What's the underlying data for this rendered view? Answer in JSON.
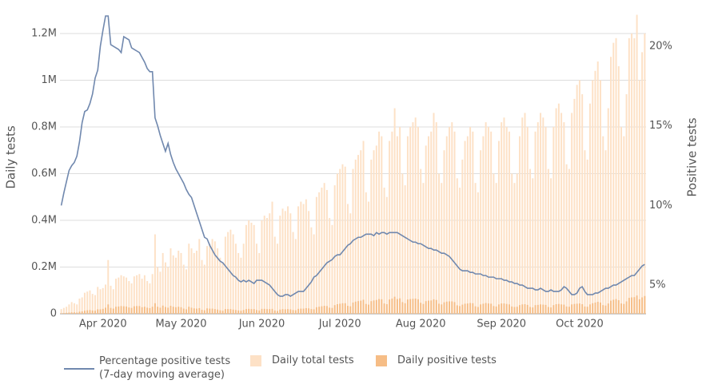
{
  "chart_data": {
    "type": "bar",
    "y_label": "Daily tests",
    "y2_label": "Positive tests",
    "categories": [
      null,
      null,
      null,
      null,
      null,
      null,
      null,
      null,
      null,
      null,
      null,
      null,
      null,
      null,
      null,
      null,
      "Apr 2020",
      null,
      null,
      null,
      null,
      null,
      null,
      null,
      null,
      null,
      null,
      null,
      null,
      null,
      null,
      null,
      null,
      null,
      null,
      null,
      null,
      null,
      null,
      null,
      null,
      null,
      null,
      null,
      null,
      null,
      "May 2020",
      null,
      null,
      null,
      null,
      null,
      null,
      null,
      null,
      null,
      null,
      null,
      null,
      null,
      null,
      null,
      null,
      null,
      null,
      null,
      null,
      null,
      null,
      null,
      null,
      null,
      null,
      null,
      null,
      null,
      null,
      "Jun 2020",
      null,
      null,
      null,
      null,
      null,
      null,
      null,
      null,
      null,
      null,
      null,
      null,
      null,
      null,
      null,
      null,
      null,
      null,
      null,
      null,
      null,
      null,
      null,
      null,
      null,
      null,
      null,
      null,
      null,
      "Jul 2020",
      null,
      null,
      null,
      null,
      null,
      null,
      null,
      null,
      null,
      null,
      null,
      null,
      null,
      null,
      null,
      null,
      null,
      null,
      null,
      null,
      null,
      null,
      null,
      null,
      null,
      null,
      null,
      null,
      null,
      null,
      "Aug 2020",
      null,
      null,
      null,
      null,
      null,
      null,
      null,
      null,
      null,
      null,
      null,
      null,
      null,
      null,
      null,
      null,
      null,
      null,
      null,
      null,
      null,
      null,
      null,
      null,
      null,
      null,
      null,
      null,
      null,
      null,
      "Sep 2020",
      null,
      null,
      null,
      null,
      null,
      null,
      null,
      null,
      null,
      null,
      null,
      null,
      null,
      null,
      null,
      null,
      null,
      null,
      null,
      null,
      null,
      null,
      null,
      null,
      null,
      null,
      null,
      null,
      null,
      "Oct 2020",
      null,
      null,
      null,
      null,
      null,
      null,
      null,
      null,
      null,
      null,
      null,
      null,
      null,
      null,
      null,
      null,
      null,
      null,
      null,
      null,
      null,
      null,
      null,
      null,
      null
    ],
    "series": [
      {
        "name": "Percentage positive tests (7-day moving average)",
        "type": "line",
        "axis": "y2",
        "color": "#7088ae",
        "values": [
          10.0,
          10.8,
          11.5,
          12.2,
          12.5,
          12.7,
          13.1,
          14.0,
          15.2,
          15.9,
          16.0,
          16.4,
          17.0,
          18.0,
          18.5,
          20.0,
          21.0,
          21.9,
          21.9,
          20.1,
          20.0,
          19.9,
          19.8,
          19.6,
          20.6,
          20.5,
          20.4,
          19.9,
          19.8,
          19.7,
          19.6,
          19.3,
          19.0,
          18.6,
          18.4,
          18.4,
          15.5,
          15.0,
          14.4,
          13.9,
          13.4,
          13.9,
          13.2,
          12.7,
          12.3,
          12.0,
          11.7,
          11.4,
          11.0,
          10.7,
          10.5,
          10.0,
          9.5,
          9.0,
          8.5,
          8.0,
          7.9,
          7.5,
          7.2,
          6.9,
          6.7,
          6.5,
          6.4,
          6.2,
          6.0,
          5.8,
          5.6,
          5.5,
          5.3,
          5.2,
          5.3,
          5.2,
          5.3,
          5.2,
          5.1,
          5.3,
          5.3,
          5.3,
          5.2,
          5.1,
          5.0,
          4.8,
          4.6,
          4.4,
          4.3,
          4.3,
          4.4,
          4.4,
          4.3,
          4.4,
          4.5,
          4.6,
          4.6,
          4.6,
          4.8,
          5.0,
          5.2,
          5.5,
          5.6,
          5.8,
          6.0,
          6.2,
          6.4,
          6.5,
          6.6,
          6.8,
          6.9,
          6.9,
          7.1,
          7.3,
          7.5,
          7.6,
          7.8,
          7.9,
          8.0,
          8.0,
          8.1,
          8.2,
          8.2,
          8.2,
          8.1,
          8.3,
          8.2,
          8.3,
          8.3,
          8.2,
          8.3,
          8.3,
          8.3,
          8.3,
          8.2,
          8.1,
          8.0,
          7.9,
          7.8,
          7.7,
          7.7,
          7.6,
          7.6,
          7.5,
          7.4,
          7.3,
          7.3,
          7.2,
          7.2,
          7.1,
          7.0,
          7.0,
          6.9,
          6.8,
          6.6,
          6.4,
          6.2,
          6.0,
          5.9,
          5.9,
          5.9,
          5.8,
          5.8,
          5.7,
          5.7,
          5.7,
          5.6,
          5.6,
          5.5,
          5.5,
          5.5,
          5.4,
          5.4,
          5.4,
          5.3,
          5.3,
          5.2,
          5.2,
          5.1,
          5.1,
          5.0,
          5.0,
          4.9,
          4.8,
          4.8,
          4.8,
          4.7,
          4.7,
          4.8,
          4.7,
          4.6,
          4.6,
          4.7,
          4.6,
          4.6,
          4.6,
          4.7,
          4.9,
          4.8,
          4.6,
          4.4,
          4.4,
          4.5,
          4.8,
          4.9,
          4.6,
          4.4,
          4.4,
          4.4,
          4.5,
          4.5,
          4.6,
          4.7,
          4.8,
          4.8,
          4.9,
          5.0,
          5.0,
          5.1,
          5.2,
          5.3,
          5.4,
          5.5,
          5.6,
          5.6,
          5.8,
          6.0,
          6.2,
          6.3
        ]
      },
      {
        "name": "Daily total tests",
        "type": "bar",
        "color": "#fde1c6",
        "values": [
          20000,
          25000,
          30000,
          40000,
          50000,
          45000,
          40000,
          65000,
          70000,
          90000,
          95000,
          100000,
          85000,
          80000,
          115000,
          105000,
          110000,
          125000,
          230000,
          120000,
          105000,
          150000,
          155000,
          165000,
          160000,
          155000,
          140000,
          130000,
          160000,
          165000,
          170000,
          150000,
          165000,
          140000,
          130000,
          170000,
          340000,
          200000,
          180000,
          260000,
          220000,
          200000,
          280000,
          250000,
          240000,
          270000,
          260000,
          210000,
          190000,
          300000,
          280000,
          260000,
          270000,
          320000,
          230000,
          210000,
          290000,
          300000,
          320000,
          310000,
          280000,
          240000,
          220000,
          330000,
          350000,
          360000,
          340000,
          300000,
          260000,
          240000,
          300000,
          380000,
          400000,
          390000,
          380000,
          300000,
          260000,
          400000,
          420000,
          410000,
          430000,
          480000,
          330000,
          300000,
          420000,
          450000,
          440000,
          460000,
          430000,
          350000,
          320000,
          460000,
          480000,
          470000,
          490000,
          440000,
          370000,
          340000,
          500000,
          520000,
          540000,
          560000,
          530000,
          410000,
          380000,
          550000,
          600000,
          620000,
          640000,
          630000,
          470000,
          430000,
          620000,
          660000,
          680000,
          700000,
          740000,
          520000,
          480000,
          660000,
          700000,
          720000,
          780000,
          760000,
          540000,
          500000,
          740000,
          780000,
          880000,
          760000,
          800000,
          600000,
          550000,
          760000,
          800000,
          820000,
          840000,
          800000,
          620000,
          560000,
          720000,
          760000,
          780000,
          860000,
          820000,
          600000,
          560000,
          700000,
          760000,
          800000,
          820000,
          780000,
          580000,
          540000,
          660000,
          740000,
          760000,
          800000,
          780000,
          560000,
          520000,
          700000,
          760000,
          820000,
          800000,
          780000,
          600000,
          560000,
          740000,
          820000,
          840000,
          800000,
          780000,
          600000,
          560000,
          600000,
          760000,
          840000,
          860000,
          800000,
          620000,
          580000,
          780000,
          820000,
          860000,
          840000,
          800000,
          620000,
          580000,
          800000,
          880000,
          900000,
          860000,
          820000,
          640000,
          620000,
          860000,
          920000,
          980000,
          1000000,
          940000,
          700000,
          660000,
          900000,
          1000000,
          1040000,
          1080000,
          1000000,
          760000,
          700000,
          880000,
          1100000,
          1160000,
          1180000,
          1060000,
          800000,
          760000,
          940000,
          1180000,
          1200000,
          1180000,
          1280000,
          1000000,
          1120000,
          1200000
        ]
      },
      {
        "name": "Daily positive tests",
        "type": "bar",
        "color": "#f6bd86",
        "values": [
          2000,
          3000,
          4000,
          5000,
          6000,
          6000,
          5000,
          9000,
          10000,
          13000,
          15000,
          16000,
          14000,
          13000,
          19000,
          19000,
          21000,
          26000,
          40000,
          25000,
          22000,
          30000,
          31000,
          33000,
          32000,
          31000,
          27000,
          25000,
          32000,
          33000,
          33000,
          28000,
          30000,
          26000,
          24000,
          30000,
          45000,
          30000,
          26000,
          35000,
          29000,
          26000,
          34000,
          30000,
          28000,
          30000,
          28000,
          22000,
          19000,
          30000,
          26000,
          23000,
          22000,
          24000,
          17000,
          15000,
          23000,
          22000,
          22000,
          20000,
          18000,
          15000,
          13000,
          20000,
          20000,
          20000,
          18000,
          16000,
          14000,
          13000,
          16000,
          20000,
          21000,
          20000,
          20000,
          16000,
          14000,
          21000,
          21000,
          20000,
          20000,
          21000,
          14000,
          12000,
          18000,
          20000,
          19000,
          20000,
          19000,
          16000,
          15000,
          21000,
          22000,
          22000,
          24000,
          23000,
          20000,
          19000,
          28000,
          30000,
          32000,
          34000,
          33000,
          26000,
          25000,
          37000,
          41000,
          43000,
          45000,
          45000,
          34000,
          32000,
          48000,
          52000,
          54000,
          56000,
          60000,
          42000,
          39000,
          54000,
          57000,
          59000,
          63000,
          62000,
          44000,
          41000,
          61000,
          65000,
          73000,
          63000,
          66000,
          50000,
          45000,
          61000,
          63000,
          64000,
          65000,
          62000,
          47000,
          42000,
          54000,
          56000,
          57000,
          62000,
          59000,
          43000,
          40000,
          49000,
          52000,
          53000,
          53000,
          50000,
          36000,
          33000,
          39000,
          43000,
          44000,
          46000,
          45000,
          32000,
          29000,
          40000,
          43000,
          46000,
          44000,
          43000,
          33000,
          31000,
          40000,
          44000,
          44000,
          42000,
          40000,
          31000,
          29000,
          30000,
          37000,
          40000,
          41000,
          38000,
          29000,
          27000,
          37000,
          38000,
          40000,
          39000,
          38000,
          29000,
          27000,
          37000,
          41000,
          42000,
          40000,
          39000,
          31000,
          30000,
          40000,
          42000,
          43000,
          44000,
          41000,
          31000,
          30000,
          40000,
          45000,
          48000,
          51000,
          48000,
          37000,
          35000,
          44000,
          56000,
          60000,
          63000,
          58000,
          44000,
          42000,
          53000,
          68000,
          70000,
          71000,
          78000,
          62000,
          70000,
          76000
        ]
      }
    ],
    "ylim": [
      0,
      1275000
    ],
    "yticks": [
      0,
      {
        "value": 200000,
        "label": "0.2M"
      },
      {
        "value": 400000,
        "label": "0.4M"
      },
      {
        "value": 600000,
        "label": "0.6M"
      },
      {
        "value": 800000,
        "label": "0.8M"
      },
      {
        "value": 1000000,
        "label": "1M"
      },
      {
        "value": 1200000,
        "label": "1.2M"
      }
    ],
    "y2lim": [
      3.2,
      21.9
    ],
    "y2ticks": [
      {
        "value": 5,
        "label": "5%"
      },
      {
        "value": 10,
        "label": "10%"
      },
      {
        "value": 15,
        "label": "15%"
      },
      {
        "value": 20,
        "label": "20%"
      }
    ],
    "grid": true,
    "legend": "bottom"
  }
}
